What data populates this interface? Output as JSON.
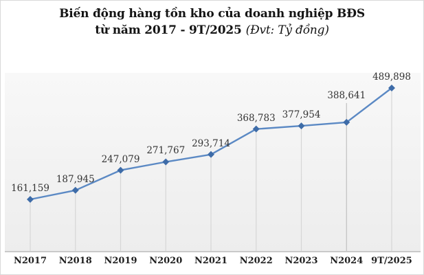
{
  "title": {
    "line1": "Biến động hàng tồn kho của doanh nghiệp BĐS",
    "line2_bold": "từ năm 2017 - 9T/2025",
    "line2_italic": "(Đvt: Tỷ đồng)"
  },
  "chart_data": {
    "type": "line",
    "title": "Biến động hàng tồn kho của doanh nghiệp BĐS từ năm 2017 - 9T/2025",
    "unit_note": "Đvt: Tỷ đồng",
    "categories": [
      "N2017",
      "N2018",
      "N2019",
      "N2020",
      "N2021",
      "N2022",
      "N2023",
      "N2024",
      "9T/2025"
    ],
    "series": [
      {
        "name": "Hàng tồn kho",
        "values": [
          161159,
          187945,
          247079,
          271767,
          293714,
          368783,
          377954,
          388641,
          489898
        ]
      }
    ],
    "data_labels": [
      "161,159",
      "187,945",
      "247,079",
      "271,767",
      "293,714",
      "368,783",
      "377,954",
      "388,641",
      "489,898"
    ],
    "xlabel": "",
    "ylabel": "",
    "ylim": [
      0,
      540000
    ],
    "y_axis_visible": false,
    "grid": "vertical-drop-lines",
    "legend": "none",
    "marker": "diamond",
    "moved_label": {
      "index": 7,
      "leader_line": true
    },
    "colors": {
      "line": "#5b89c4",
      "marker": "#3e6ca8",
      "drop_line": "#d6d6d6",
      "leader_line": "#c0c0c0",
      "axis_line": "#c9c9c9",
      "plot_bg": "#f0f0f0",
      "title_text": "#141414",
      "label_text": "#333333"
    }
  }
}
